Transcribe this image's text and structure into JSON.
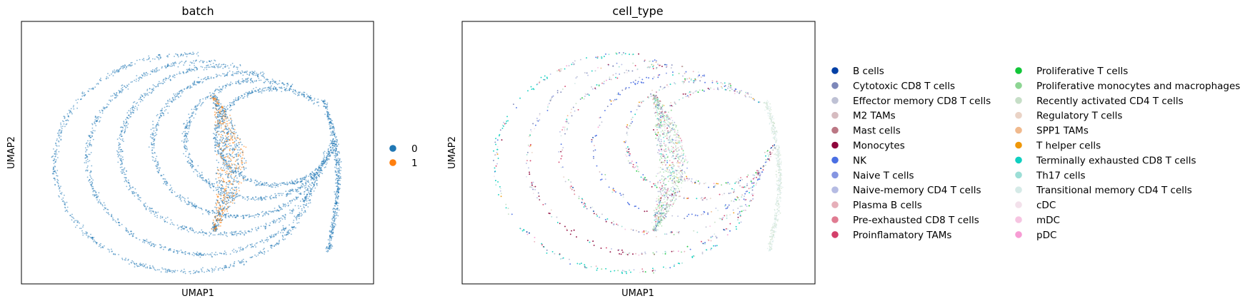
{
  "chart_data": [
    {
      "type": "scatter",
      "title": "batch",
      "xlabel": "UMAP1",
      "ylabel": "UMAP2",
      "grid": false,
      "legend_placement": "right",
      "categories": [
        "0",
        "1"
      ],
      "colors": {
        "0": "#1f77b4",
        "1": "#ff7f0e"
      }
    },
    {
      "type": "scatter",
      "title": "cell_type",
      "xlabel": "UMAP1",
      "ylabel": "UMAP2",
      "grid": false,
      "legend_placement": "right",
      "categories": [
        "B cells",
        "Cytotoxic CD8 T cells",
        "Effector memory CD8 T cells",
        "M2 TAMs",
        "Mast cells",
        "Monocytes",
        "NK",
        "Naive T cells",
        "Naive-memory CD4 T cells",
        "Plasma B cells",
        "Pre-exhausted CD8 T cells",
        "Proinflamatory TAMs",
        "Proliferative T cells",
        "Proliferative monocytes and macrophages",
        "Recently activated CD4 T cells",
        "Regulatory T cells",
        "SPP1 TAMs",
        "T helper cells",
        "Terminally exhausted CD8 T cells",
        "Th17 cells",
        "Transitional memory CD4 T cells",
        "cDC",
        "mDC",
        "pDC"
      ],
      "colors": {
        "B cells": "#023fa5",
        "Cytotoxic CD8 T cells": "#7d87b9",
        "Effector memory CD8 T cells": "#bec1d4",
        "M2 TAMs": "#d6bcc0",
        "Mast cells": "#bb7784",
        "Monocytes": "#8e063b",
        "NK": "#4a6fe3",
        "Naive T cells": "#8595e1",
        "Naive-memory CD4 T cells": "#b5bbe3",
        "Plasma B cells": "#e6afb9",
        "Pre-exhausted CD8 T cells": "#e07b91",
        "Proinflamatory TAMs": "#d33f6a",
        "Proliferative T cells": "#11c638",
        "Proliferative monocytes and macrophages": "#8dd593",
        "Recently activated CD4 T cells": "#c6dec7",
        "Regulatory T cells": "#ead3c6",
        "SPP1 TAMs": "#f0b98d",
        "T helper cells": "#ef9708",
        "Terminally exhausted CD8 T cells": "#0fcfc0",
        "Th17 cells": "#9cded6",
        "Transitional memory CD4 T cells": "#d5eae7",
        "cDC": "#f3e1eb",
        "mDC": "#f6c4e1",
        "pDC": "#f79cd4"
      }
    }
  ]
}
